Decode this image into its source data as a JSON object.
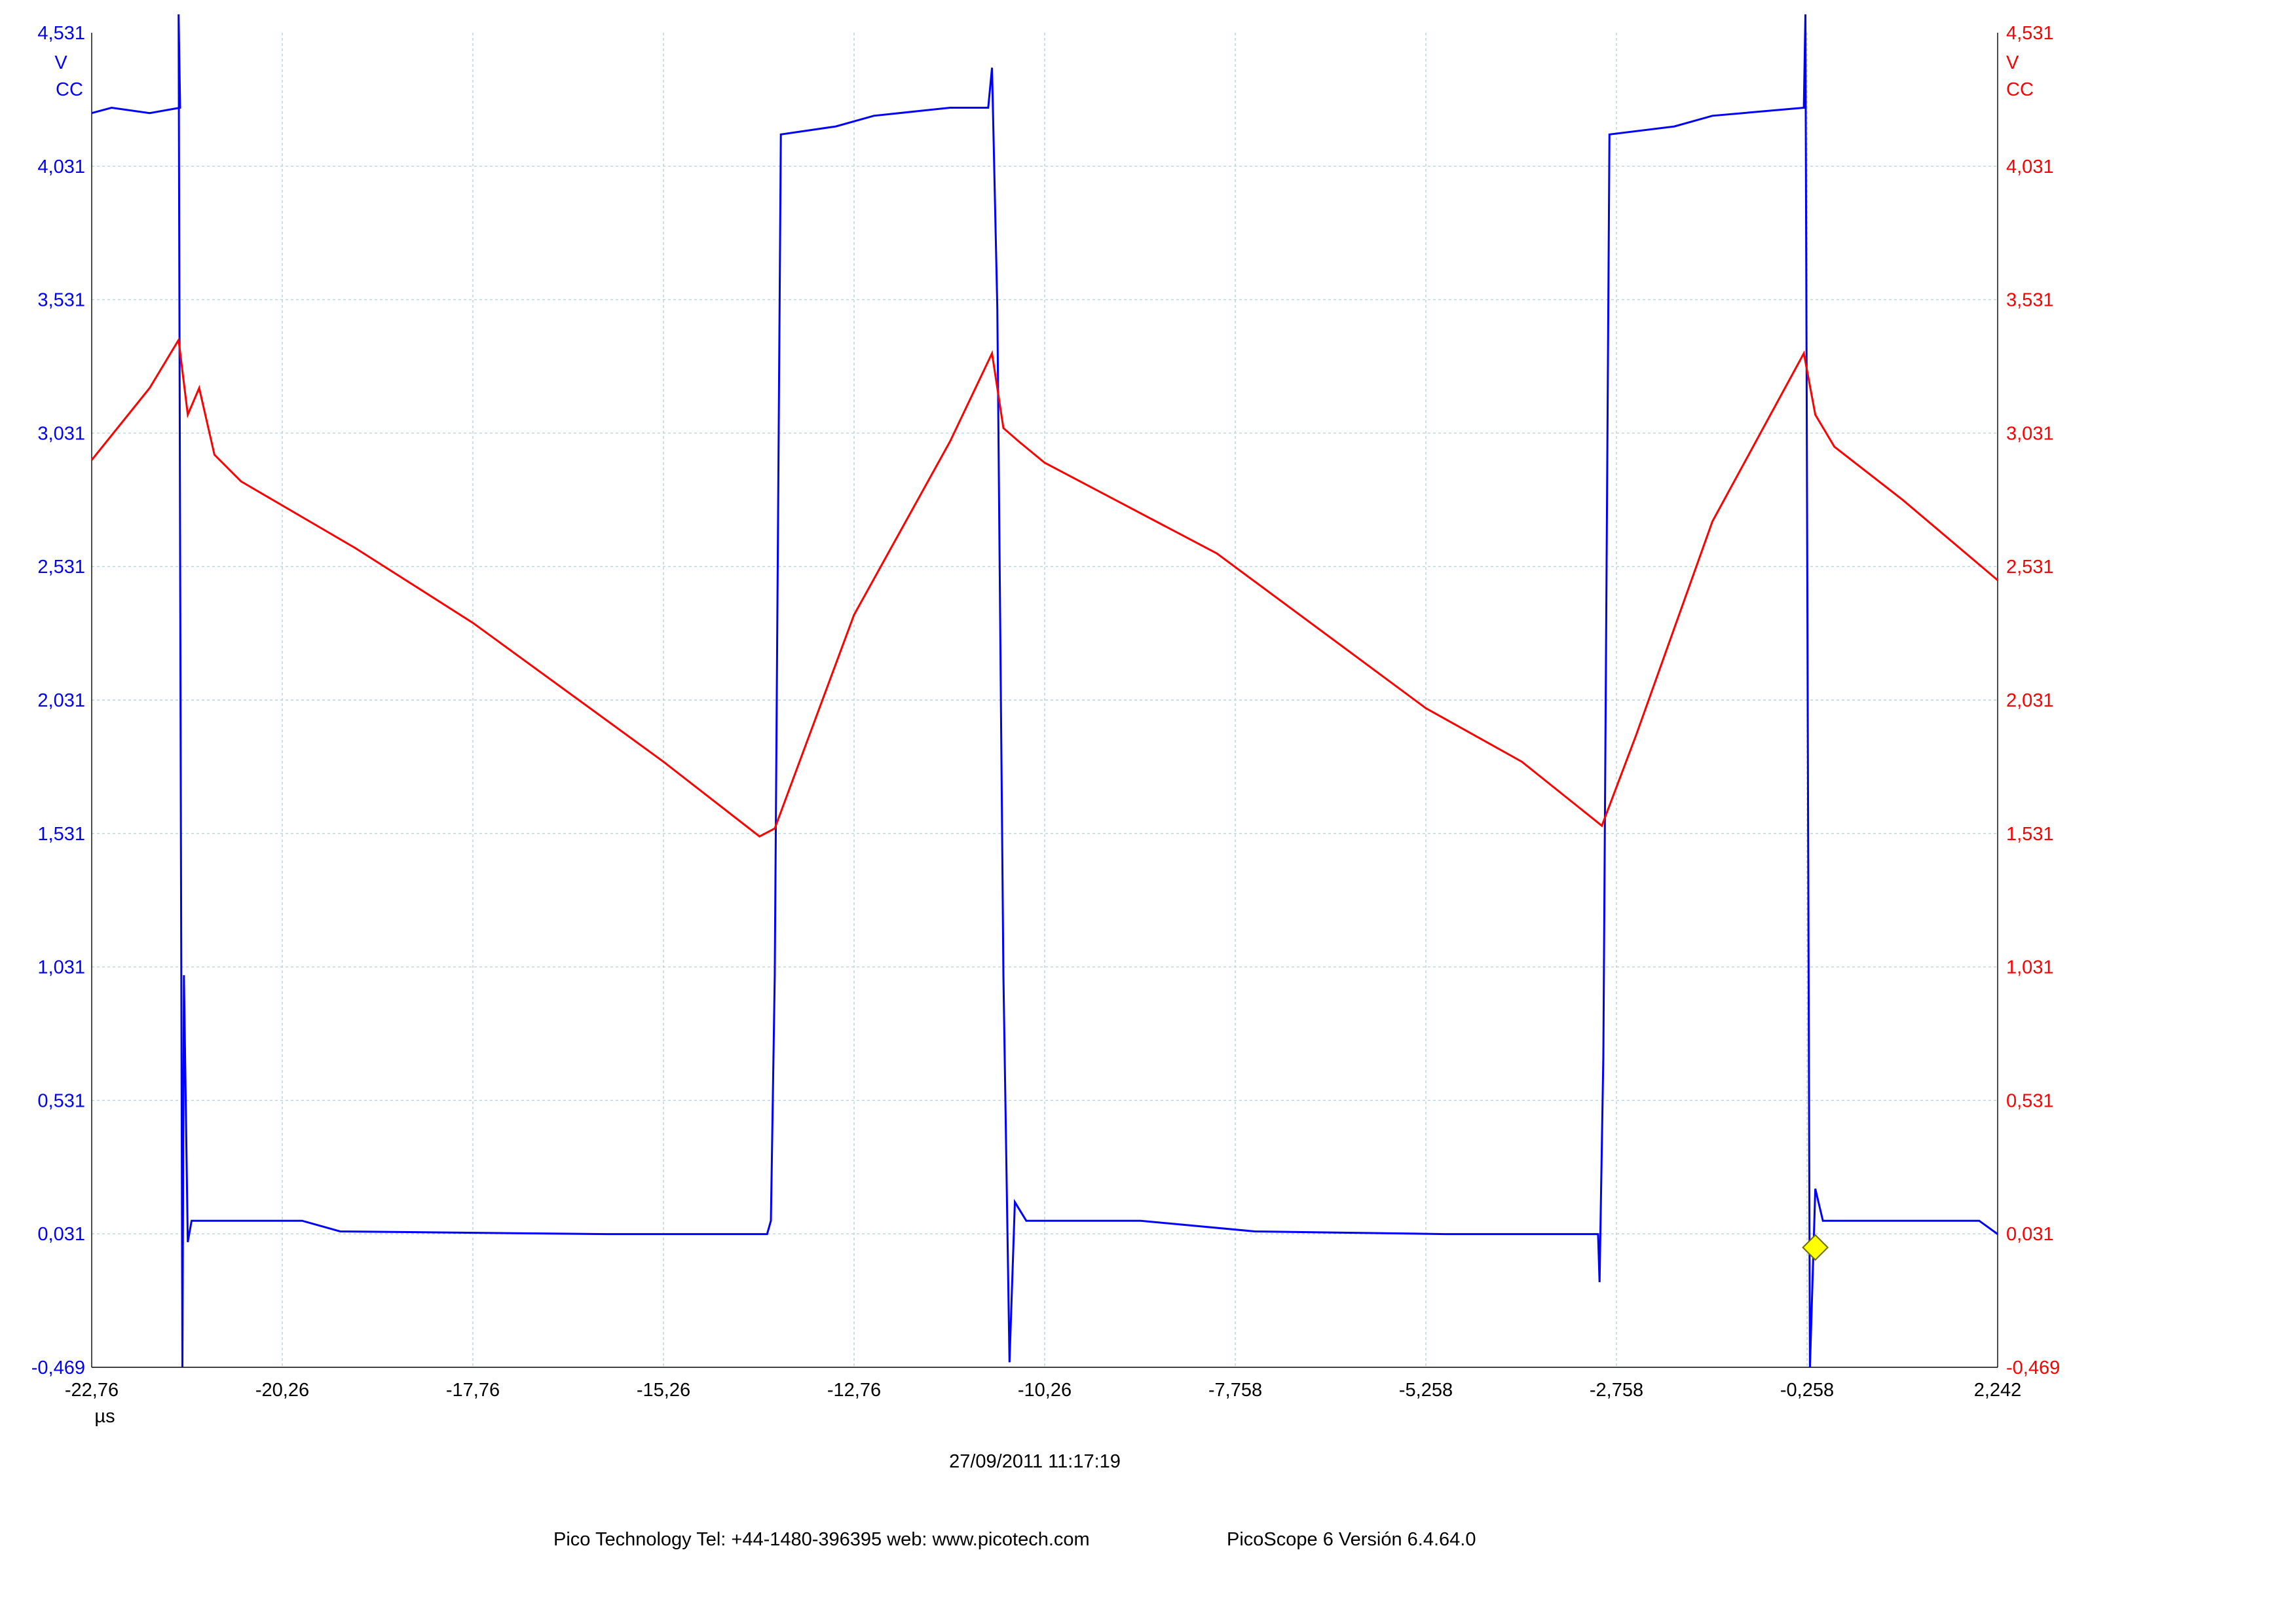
{
  "chart_data": {
    "type": "line",
    "xlabel": "µs",
    "x_ticks": [
      "-22,76",
      "-20,26",
      "-17,76",
      "-15,26",
      "-12,76",
      "-10,26",
      "-7,758",
      "-5,258",
      "-2,758",
      "-0,258",
      "2,242"
    ],
    "xlim": [
      -22.76,
      2.242
    ],
    "grid": true,
    "y_left": {
      "ticks": [
        "4,531",
        "4,031",
        "3,531",
        "3,031",
        "2,531",
        "2,031",
        "1,531",
        "1,031",
        "0,531",
        "0,031",
        "-0,469"
      ],
      "unit": "V",
      "coupling": "CC",
      "ylim": [
        -0.469,
        4.531
      ],
      "color": "#0000ff"
    },
    "y_right": {
      "ticks": [
        "4,531",
        "4,031",
        "3,531",
        "3,031",
        "2,531",
        "2,031",
        "1,531",
        "1,031",
        "0,531",
        "0,031",
        "-0,469"
      ],
      "unit": "V",
      "coupling": "CC",
      "ylim": [
        -0.469,
        4.531
      ],
      "color": "#ff0000"
    },
    "series": [
      {
        "axis": "left",
        "color": "#0000ff",
        "points": [
          [
            -22.76,
            4.23
          ],
          [
            -22.5,
            4.25
          ],
          [
            -22.0,
            4.23
          ],
          [
            -21.6,
            4.25
          ],
          [
            -21.62,
            4.6
          ],
          [
            -21.57,
            -0.469
          ],
          [
            -21.55,
            1.0
          ],
          [
            -21.5,
            0.0
          ],
          [
            -21.45,
            0.08
          ],
          [
            -21.3,
            0.08
          ],
          [
            -20.0,
            0.08
          ],
          [
            -19.5,
            0.04
          ],
          [
            -16.0,
            0.03
          ],
          [
            -13.9,
            0.03
          ],
          [
            -13.85,
            0.08
          ],
          [
            -13.8,
            1.0
          ],
          [
            -13.72,
            4.15
          ],
          [
            -13.0,
            4.18
          ],
          [
            -12.5,
            4.22
          ],
          [
            -11.5,
            4.25
          ],
          [
            -11.0,
            4.25
          ],
          [
            -10.95,
            4.4
          ],
          [
            -10.88,
            3.5
          ],
          [
            -10.8,
            1.0
          ],
          [
            -10.72,
            -0.45
          ],
          [
            -10.65,
            0.15
          ],
          [
            -10.5,
            0.08
          ],
          [
            -9.0,
            0.08
          ],
          [
            -7.5,
            0.04
          ],
          [
            -5.0,
            0.03
          ],
          [
            -3.0,
            0.03
          ],
          [
            -2.98,
            -0.15
          ],
          [
            -2.93,
            0.7
          ],
          [
            -2.85,
            4.15
          ],
          [
            -2.0,
            4.18
          ],
          [
            -1.5,
            4.22
          ],
          [
            -0.3,
            4.25
          ],
          [
            -0.28,
            4.6
          ],
          [
            -0.22,
            -0.469
          ],
          [
            -0.15,
            0.2
          ],
          [
            -0.05,
            0.08
          ],
          [
            2.0,
            0.08
          ],
          [
            2.242,
            0.03
          ]
        ]
      },
      {
        "axis": "right",
        "color": "#ff0000",
        "points": [
          [
            -22.76,
            2.93
          ],
          [
            -22.0,
            3.2
          ],
          [
            -21.62,
            3.38
          ],
          [
            -21.5,
            3.1
          ],
          [
            -21.35,
            3.2
          ],
          [
            -21.15,
            2.95
          ],
          [
            -20.8,
            2.85
          ],
          [
            -19.3,
            2.6
          ],
          [
            -17.76,
            2.32
          ],
          [
            -15.26,
            1.8
          ],
          [
            -14.0,
            1.52
          ],
          [
            -13.8,
            1.55
          ],
          [
            -12.76,
            2.35
          ],
          [
            -11.5,
            3.0
          ],
          [
            -10.95,
            3.33
          ],
          [
            -10.8,
            3.05
          ],
          [
            -10.6,
            3.0
          ],
          [
            -10.26,
            2.92
          ],
          [
            -8.0,
            2.58
          ],
          [
            -5.258,
            2.0
          ],
          [
            -4.0,
            1.8
          ],
          [
            -2.95,
            1.56
          ],
          [
            -2.5,
            1.9
          ],
          [
            -1.5,
            2.7
          ],
          [
            -0.3,
            3.33
          ],
          [
            -0.15,
            3.1
          ],
          [
            0.1,
            2.98
          ],
          [
            1.0,
            2.78
          ],
          [
            2.242,
            2.48
          ]
        ]
      }
    ],
    "markers": [
      {
        "type": "trigger",
        "shape": "diamond",
        "x": -0.15,
        "y": -0.02,
        "color": "#ffff00"
      }
    ]
  },
  "footer": {
    "timestamp": "27/09/2011 11:17:19",
    "company": "Pico Technology Tel: +44-1480-396395  web: www.picotech.com",
    "software": "PicoScope 6 Versión 6.4.64.0"
  }
}
